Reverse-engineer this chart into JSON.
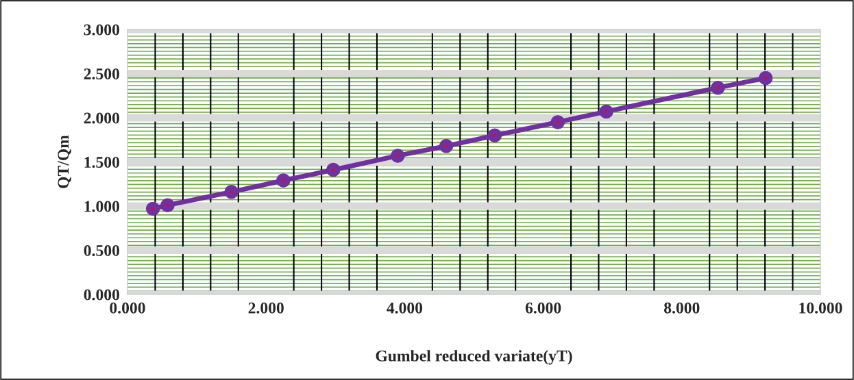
{
  "chart_data": {
    "type": "line",
    "xlabel": "Gumbel reduced variate(yT)",
    "ylabel": "QT/Qm",
    "x": [
      0.367,
      0.579,
      1.5,
      2.25,
      2.97,
      3.9,
      4.6,
      5.3,
      6.21,
      6.91,
      8.52,
      9.21
    ],
    "series": [
      {
        "color": "#7030a0",
        "values": [
          0.97,
          1.01,
          1.16,
          1.29,
          1.41,
          1.57,
          1.68,
          1.8,
          1.95,
          2.07,
          2.34,
          2.45
        ]
      }
    ],
    "xlim": [
      0,
      10
    ],
    "ylim": [
      0,
      3
    ],
    "xticks": [
      {
        "value": 0,
        "label": "0.000"
      },
      {
        "value": 2,
        "label": "2.000"
      },
      {
        "value": 4,
        "label": "4.000"
      },
      {
        "value": 6,
        "label": "6.000"
      },
      {
        "value": 8,
        "label": "8.000"
      },
      {
        "value": 10,
        "label": "10.000"
      }
    ],
    "yticks": [
      {
        "value": 0,
        "label": "0.000"
      },
      {
        "value": 0.5,
        "label": "0.500"
      },
      {
        "value": 1,
        "label": "1.000"
      },
      {
        "value": 1.5,
        "label": "1.500"
      },
      {
        "value": 2,
        "label": "2.000"
      },
      {
        "value": 2.5,
        "label": "2.500"
      },
      {
        "value": 3,
        "label": "3.000"
      }
    ],
    "grid": true,
    "marker": "circle",
    "line_style": "solid",
    "legend": false
  }
}
